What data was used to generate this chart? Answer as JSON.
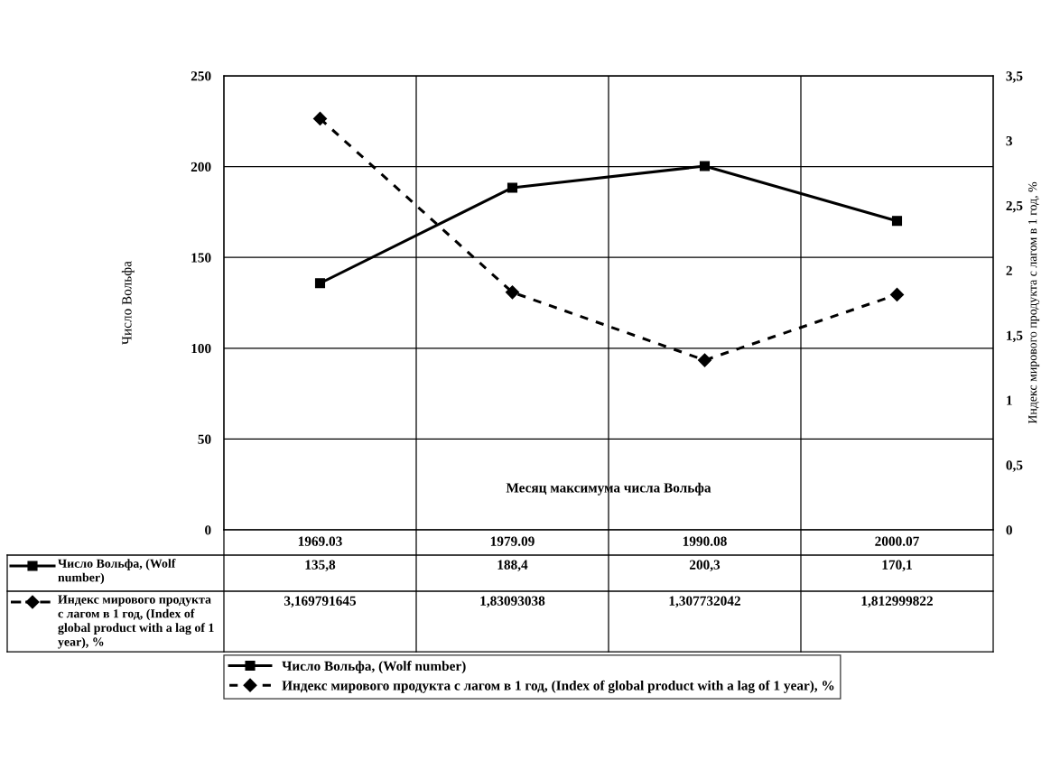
{
  "chart_data": {
    "type": "line",
    "xlabel": "Месяц максимума числа Вольфа",
    "ylabel": "Число Вольфа",
    "y2label": "Индекс мирового продукта с лагом в 1 год, %",
    "categories": [
      "1969.03",
      "1979.09",
      "1990.08",
      "2000.07"
    ],
    "series": [
      {
        "name": "Число Вольфа, (Wolf number)",
        "color": "#000000",
        "marker": "square",
        "line_style": "solid",
        "values": [
          135.8,
          188.4,
          200.3,
          170.1
        ],
        "value_labels": [
          "135,8",
          "188,4",
          "200,3",
          "170,1"
        ]
      },
      {
        "name": "Индекс мирового продукта с лагом в 1 год, (Index of global product with a lag of 1 year), %",
        "color": "#000000",
        "marker": "diamond",
        "line_style": "dashed",
        "axis": "y2",
        "values": [
          3.169791645,
          1.83093038,
          1.307732042,
          1.812999822
        ],
        "value_labels": [
          "3,169791645",
          "1,83093038",
          "1,307732042",
          "1,812999822"
        ]
      }
    ],
    "ylim": [
      0,
      250
    ],
    "yticks": [
      0,
      50,
      100,
      150,
      200,
      250
    ],
    "y2lim": [
      0,
      3.5
    ],
    "y2ticks": [
      0,
      {
        "value": 0.5,
        "label": "0,5"
      },
      1,
      {
        "value": 1.5,
        "label": "1,5"
      },
      2,
      {
        "value": 2.5,
        "label": "2,5"
      },
      3,
      {
        "value": 3.5,
        "label": "3,5"
      }
    ],
    "grid": true,
    "legend": "bottom"
  }
}
